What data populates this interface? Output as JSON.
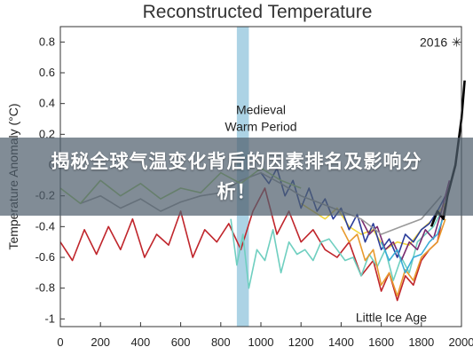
{
  "overlay": {
    "headline": "揭秘全球气温变化背后的因素排名及影响分析！"
  },
  "chart_data": {
    "type": "line",
    "title": "Reconstructed Temperature",
    "xlabel": "",
    "ylabel": "Temperature Anomaly (°C)",
    "xlim": [
      0,
      2000
    ],
    "ylim": [
      -1.05,
      0.9
    ],
    "x_ticks": [
      "0",
      "200",
      "400",
      "600",
      "800",
      "1000",
      "1200",
      "1400",
      "1600",
      "1800",
      "2000"
    ],
    "y_ticks": [
      "0.8",
      "0.6",
      "0.4",
      "0.2",
      "0",
      "-0.2",
      "-0.4",
      "-0.6",
      "-0.8",
      "-1"
    ],
    "grid": false,
    "highlight_band": {
      "x_range": [
        880,
        940
      ],
      "color": "#9ecbe0"
    },
    "annotations": [
      {
        "text": "2016",
        "x": 2016,
        "y": 0.8
      },
      {
        "text": "Medieval",
        "x": 1000,
        "y": 0.36
      },
      {
        "text": "Warm Period",
        "x": 1000,
        "y": 0.25
      },
      {
        "text": "Little Ice Age",
        "x": 1650,
        "y": -0.99
      }
    ],
    "marker_2016": {
      "x": 2016,
      "y": 0.8,
      "glyph": "✳"
    },
    "series": [
      {
        "color": "#c0262c",
        "x": [
          0,
          60,
          120,
          180,
          240,
          300,
          360,
          420,
          480,
          540,
          600,
          660,
          720,
          780,
          840,
          900,
          960,
          1020,
          1080,
          1140,
          1200,
          1260,
          1320,
          1380,
          1440,
          1500,
          1560,
          1600,
          1640,
          1680,
          1720,
          1760,
          1800,
          1840,
          1880,
          1920
        ],
        "y": [
          -0.5,
          -0.62,
          -0.42,
          -0.58,
          -0.4,
          -0.55,
          -0.35,
          -0.6,
          -0.45,
          -0.52,
          -0.3,
          -0.6,
          -0.42,
          -0.5,
          -0.38,
          -0.55,
          -0.3,
          -0.15,
          -0.45,
          -0.3,
          -0.5,
          -0.42,
          -0.55,
          -0.6,
          -0.5,
          -0.72,
          -0.62,
          -0.82,
          -0.7,
          -0.88,
          -0.72,
          -0.78,
          -0.62,
          -0.55,
          -0.5,
          -0.25
        ]
      },
      {
        "color": "#6fcfc0",
        "x": [
          850,
          880,
          910,
          940,
          980,
          1020,
          1060,
          1100,
          1140,
          1180,
          1220,
          1260,
          1300,
          1340,
          1380,
          1420,
          1460,
          1500,
          1540,
          1580,
          1620,
          1660,
          1700,
          1740,
          1780,
          1820,
          1860,
          1900
        ],
        "y": [
          -0.35,
          -0.65,
          -0.45,
          -0.8,
          -0.55,
          -0.62,
          -0.42,
          -0.7,
          -0.5,
          -0.58,
          -0.55,
          -0.62,
          -0.5,
          -0.48,
          -0.55,
          -0.62,
          -0.6,
          -0.72,
          -0.58,
          -0.66,
          -0.55,
          -0.75,
          -0.6,
          -0.7,
          -0.5,
          -0.45,
          -0.4,
          -0.3
        ]
      },
      {
        "color": "#e89a2e",
        "x": [
          1400,
          1440,
          1480,
          1520,
          1560,
          1600,
          1640,
          1680,
          1720,
          1760,
          1800,
          1840,
          1880,
          1920
        ],
        "y": [
          -0.4,
          -0.5,
          -0.45,
          -0.62,
          -0.55,
          -0.78,
          -0.7,
          -0.85,
          -0.68,
          -0.75,
          -0.6,
          -0.55,
          -0.5,
          -0.35
        ]
      },
      {
        "color": "#f2d63c",
        "x": [
          1200,
          1260,
          1320,
          1380,
          1440,
          1500,
          1560,
          1620,
          1680,
          1740,
          1800,
          1860,
          1920
        ],
        "y": [
          -0.25,
          -0.3,
          -0.35,
          -0.28,
          -0.4,
          -0.45,
          -0.42,
          -0.55,
          -0.5,
          -0.52,
          -0.42,
          -0.35,
          -0.25
        ]
      },
      {
        "color": "#2a3d9a",
        "x": [
          1000,
          1040,
          1080,
          1120,
          1160,
          1200,
          1240,
          1280,
          1320,
          1360,
          1400,
          1440,
          1480,
          1520,
          1560,
          1600,
          1640,
          1680,
          1720,
          1760,
          1800,
          1840,
          1880,
          1920
        ],
        "y": [
          -0.05,
          -0.12,
          -0.02,
          -0.2,
          -0.1,
          -0.28,
          -0.15,
          -0.3,
          -0.22,
          -0.35,
          -0.28,
          -0.42,
          -0.32,
          -0.5,
          -0.38,
          -0.55,
          -0.48,
          -0.6,
          -0.45,
          -0.5,
          -0.42,
          -0.38,
          -0.3,
          -0.2
        ]
      },
      {
        "color": "#7a2a6e",
        "x": [
          1500,
          1540,
          1580,
          1620,
          1660,
          1700,
          1740,
          1780,
          1820,
          1860,
          1900,
          1940
        ],
        "y": [
          -0.35,
          -0.45,
          -0.4,
          -0.55,
          -0.5,
          -0.62,
          -0.5,
          -0.55,
          -0.42,
          -0.48,
          -0.3,
          -0.1
        ]
      },
      {
        "color": "#3aaed8",
        "x": [
          1600,
          1640,
          1680,
          1720,
          1760,
          1800,
          1840,
          1880,
          1920
        ],
        "y": [
          -0.5,
          -0.62,
          -0.55,
          -0.7,
          -0.6,
          -0.58,
          -0.5,
          -0.45,
          -0.3
        ]
      },
      {
        "color": "#9a9a9a",
        "x": [
          100,
          200,
          300,
          400,
          500,
          600,
          700,
          800,
          900,
          1000,
          1100,
          1200,
          1300,
          1400,
          1500,
          1600,
          1700,
          1800,
          1900
        ],
        "y": [
          -0.25,
          -0.2,
          -0.28,
          -0.22,
          -0.3,
          -0.24,
          -0.2,
          -0.18,
          -0.1,
          -0.05,
          -0.12,
          -0.2,
          -0.25,
          -0.3,
          -0.35,
          -0.45,
          -0.4,
          -0.35,
          -0.2
        ]
      },
      {
        "color": "#9fcf6a",
        "x": [
          0,
          100,
          200,
          300,
          400,
          500,
          600,
          700,
          800,
          900,
          1000,
          1100,
          1200
        ],
        "y": [
          -0.15,
          -0.25,
          -0.1,
          -0.2,
          -0.12,
          -0.22,
          -0.15,
          -0.18,
          -0.05,
          -0.12,
          -0.02,
          -0.1,
          -0.15
        ]
      },
      {
        "color": "#000000",
        "x": [
          1850,
          1880,
          1910,
          1930,
          1950,
          1970,
          1985,
          2000,
          2016
        ],
        "y": [
          -0.4,
          -0.3,
          -0.35,
          -0.2,
          -0.1,
          0.0,
          0.15,
          0.3,
          0.55
        ]
      }
    ]
  }
}
